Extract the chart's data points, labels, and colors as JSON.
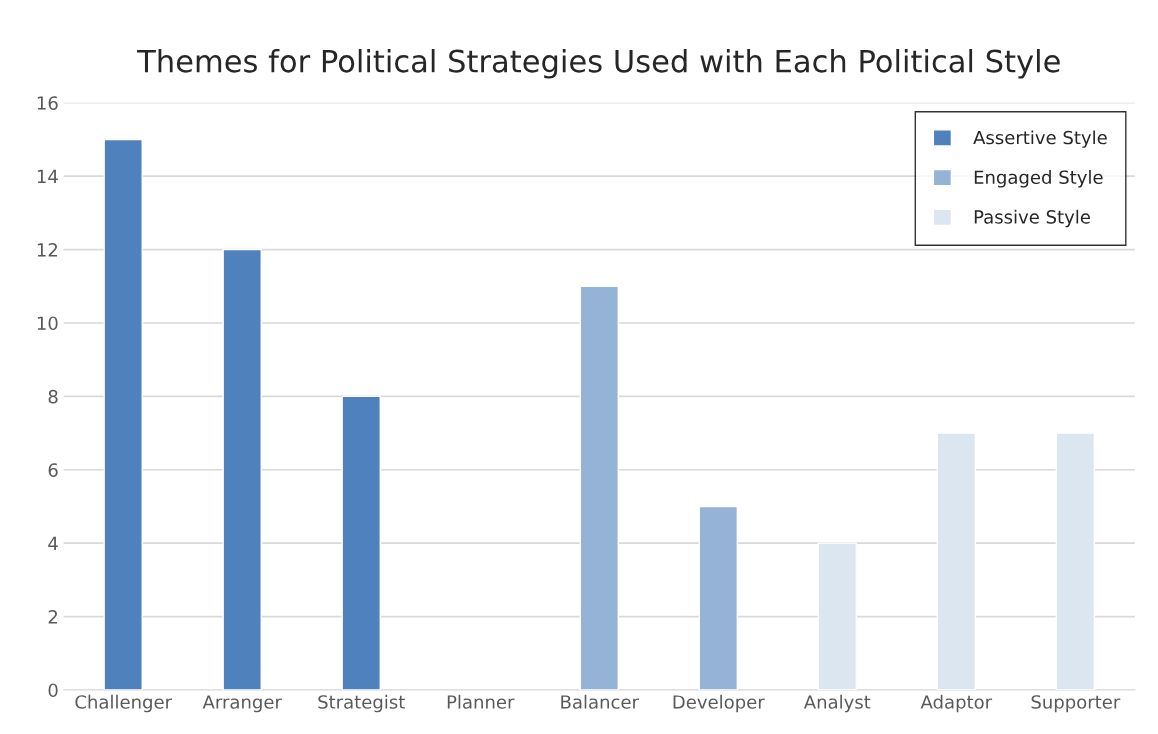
{
  "chart_data": {
    "type": "bar",
    "title": "Themes for Political Strategies Used with Each Political Style",
    "categories": [
      "Challenger",
      "Arranger",
      "Strategist",
      "Planner",
      "Balancer",
      "Developer",
      "Analyst",
      "Adaptor",
      "Supporter"
    ],
    "series": [
      {
        "name": "Assertive Style",
        "color": "#4f81bd",
        "values": [
          15,
          12,
          8,
          null,
          null,
          null,
          null,
          null,
          null
        ]
      },
      {
        "name": "Engaged Style",
        "color": "#95b3d7",
        "values": [
          null,
          null,
          null,
          null,
          11,
          5,
          null,
          null,
          null
        ]
      },
      {
        "name": "Passive Style",
        "color": "#dce6f1",
        "values": [
          null,
          null,
          null,
          null,
          null,
          null,
          4,
          7,
          7
        ]
      }
    ],
    "ylim": [
      0,
      16
    ],
    "yticks": [
      0,
      2,
      4,
      6,
      8,
      10,
      12,
      14,
      16
    ],
    "grid": "y",
    "legend": "top right"
  }
}
